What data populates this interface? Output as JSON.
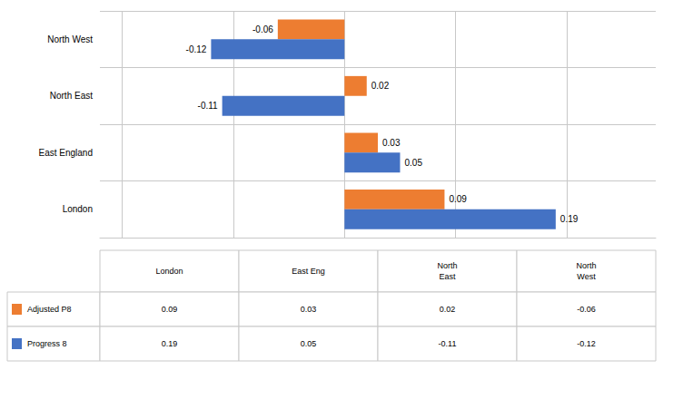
{
  "chart_data": {
    "type": "bar",
    "orientation": "horizontal",
    "categories": [
      "London",
      "East England",
      "North East",
      "North West"
    ],
    "series": [
      {
        "name": "Adjusted P8",
        "color": "#ED7D31",
        "values": [
          0.09,
          0.03,
          0.02,
          -0.06
        ]
      },
      {
        "name": "Progress 8",
        "color": "#4472C4",
        "values": [
          0.19,
          0.05,
          -0.11,
          -0.12
        ]
      }
    ],
    "xlim": [
      -0.22,
      0.28
    ],
    "xticks": [
      -0.2,
      -0.1,
      0,
      0.1,
      0.2
    ],
    "grid": true,
    "data_labels": true,
    "tick_labels": "y",
    "table": {
      "columns": [
        "London",
        "East Eng",
        "North\nEast",
        "North\nWest"
      ]
    }
  }
}
